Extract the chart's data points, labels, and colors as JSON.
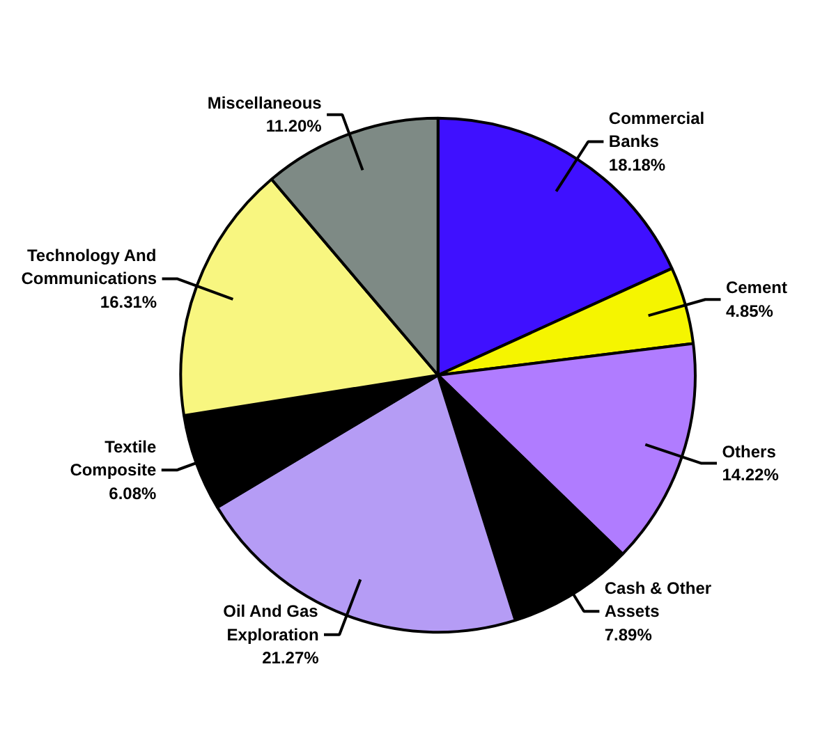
{
  "chart_data": {
    "type": "pie",
    "categories": [
      "Commercial Banks",
      "Cement",
      "Others",
      "Cash & Other Assets",
      "Oil And Gas Exploration",
      "Textile Composite",
      "Technology And Communications",
      "Miscellaneous"
    ],
    "values": [
      18.18,
      4.85,
      14.22,
      7.89,
      21.27,
      6.08,
      16.31,
      11.2
    ],
    "colors": [
      "#3f10ff",
      "#f5f500",
      "#b07cff",
      "#000000",
      "#b59cf5",
      "#000000",
      "#f8f680",
      "#7e8a85"
    ],
    "value_labels": [
      "18.18%",
      "4.85%",
      "14.22%",
      "7.89%",
      "21.27%",
      "6.08%",
      "16.31%",
      "11.20%"
    ]
  }
}
